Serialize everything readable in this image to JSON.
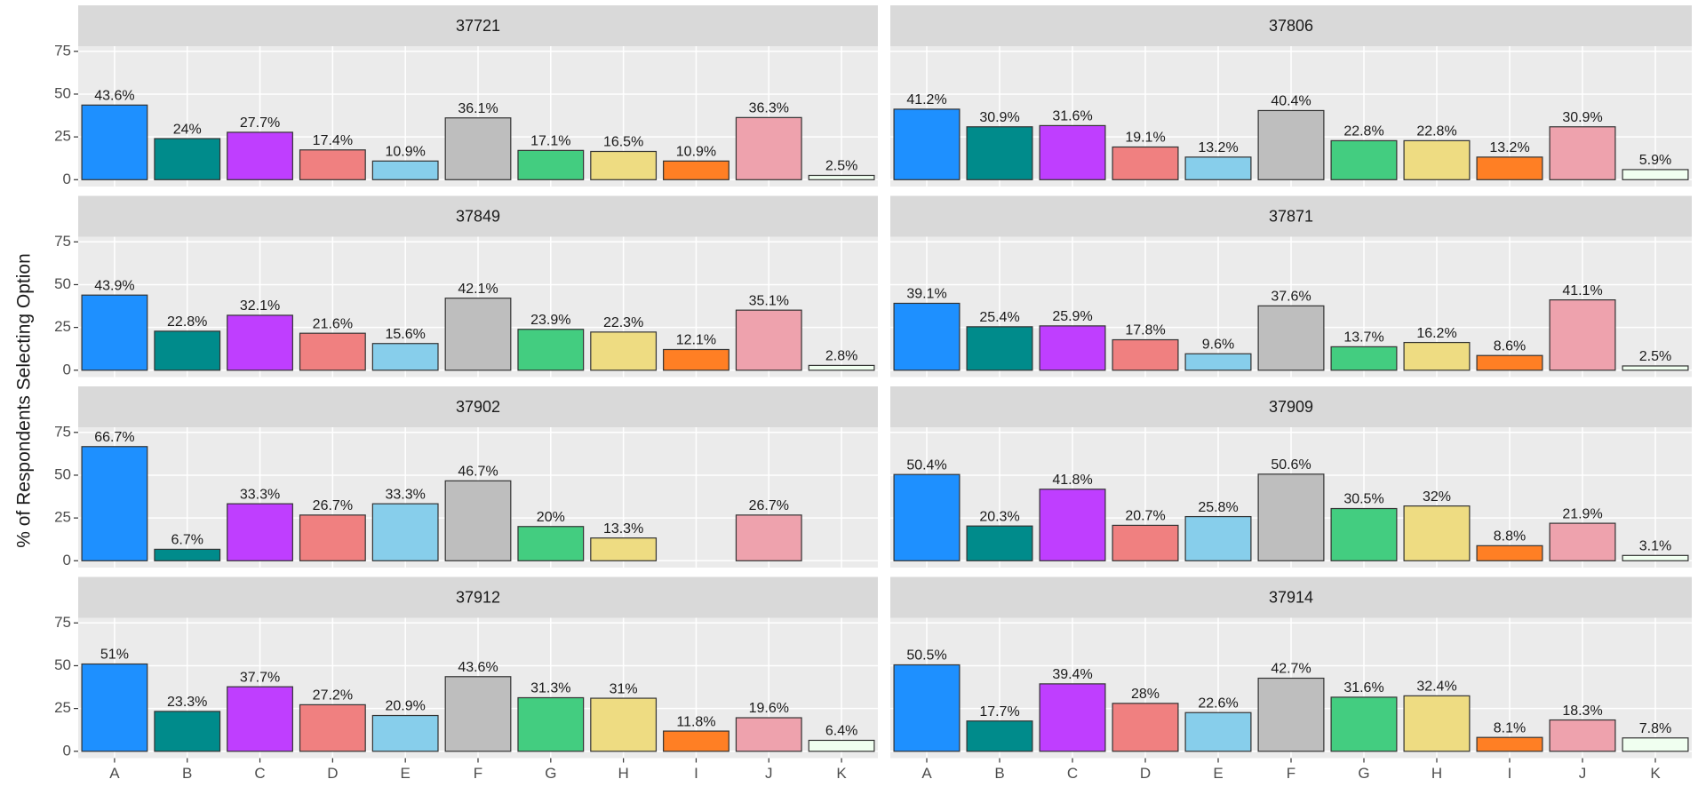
{
  "y_label": "% of Respondents Selecting Option",
  "chart_data": [
    {
      "type": "bar",
      "title": "37721",
      "categories": [
        "A",
        "B",
        "C",
        "D",
        "E",
        "F",
        "G",
        "H",
        "I",
        "J",
        "K"
      ],
      "values": [
        43.6,
        24,
        27.7,
        17.4,
        10.9,
        36.1,
        17.1,
        16.5,
        10.9,
        36.3,
        2.5
      ],
      "value_labels": [
        "43.6%",
        "24%",
        "27.7%",
        "17.4%",
        "10.9%",
        "36.1%",
        "17.1%",
        "16.5%",
        "10.9%",
        "36.3%",
        "2.5%"
      ],
      "colors": [
        "#1e90ff",
        "#008b8b",
        "#bf3eff",
        "#f08080",
        "#87ceeb",
        "#bebebe",
        "#43cd80",
        "#eedc82",
        "#ff7f24",
        "#eea2ad",
        "#f0fff0"
      ],
      "ylim": [
        -4,
        78
      ],
      "yticks": [
        0,
        25,
        50,
        75
      ],
      "grid": true
    },
    {
      "type": "bar",
      "title": "37806",
      "categories": [
        "A",
        "B",
        "C",
        "D",
        "E",
        "F",
        "G",
        "H",
        "I",
        "J",
        "K"
      ],
      "values": [
        41.2,
        30.9,
        31.6,
        19.1,
        13.2,
        40.4,
        22.8,
        22.8,
        13.2,
        30.9,
        5.9
      ],
      "value_labels": [
        "41.2%",
        "30.9%",
        "31.6%",
        "19.1%",
        "13.2%",
        "40.4%",
        "22.8%",
        "22.8%",
        "13.2%",
        "30.9%",
        "5.9%"
      ],
      "colors": [
        "#1e90ff",
        "#008b8b",
        "#bf3eff",
        "#f08080",
        "#87ceeb",
        "#bebebe",
        "#43cd80",
        "#eedc82",
        "#ff7f24",
        "#eea2ad",
        "#f0fff0"
      ],
      "ylim": [
        -4,
        78
      ],
      "yticks": [
        0,
        25,
        50,
        75
      ],
      "grid": true
    },
    {
      "type": "bar",
      "title": "37849",
      "categories": [
        "A",
        "B",
        "C",
        "D",
        "E",
        "F",
        "G",
        "H",
        "I",
        "J",
        "K"
      ],
      "values": [
        43.9,
        22.8,
        32.1,
        21.6,
        15.6,
        42.1,
        23.9,
        22.3,
        12.1,
        35.1,
        2.8
      ],
      "value_labels": [
        "43.9%",
        "22.8%",
        "32.1%",
        "21.6%",
        "15.6%",
        "42.1%",
        "23.9%",
        "22.3%",
        "12.1%",
        "35.1%",
        "2.8%"
      ],
      "colors": [
        "#1e90ff",
        "#008b8b",
        "#bf3eff",
        "#f08080",
        "#87ceeb",
        "#bebebe",
        "#43cd80",
        "#eedc82",
        "#ff7f24",
        "#eea2ad",
        "#f0fff0"
      ],
      "ylim": [
        -4,
        78
      ],
      "yticks": [
        0,
        25,
        50,
        75
      ],
      "grid": true
    },
    {
      "type": "bar",
      "title": "37871",
      "categories": [
        "A",
        "B",
        "C",
        "D",
        "E",
        "F",
        "G",
        "H",
        "I",
        "J",
        "K"
      ],
      "values": [
        39.1,
        25.4,
        25.9,
        17.8,
        9.6,
        37.6,
        13.7,
        16.2,
        8.6,
        41.1,
        2.5
      ],
      "value_labels": [
        "39.1%",
        "25.4%",
        "25.9%",
        "17.8%",
        "9.6%",
        "37.6%",
        "13.7%",
        "16.2%",
        "8.6%",
        "41.1%",
        "2.5%"
      ],
      "colors": [
        "#1e90ff",
        "#008b8b",
        "#bf3eff",
        "#f08080",
        "#87ceeb",
        "#bebebe",
        "#43cd80",
        "#eedc82",
        "#ff7f24",
        "#eea2ad",
        "#f0fff0"
      ],
      "ylim": [
        -4,
        78
      ],
      "yticks": [
        0,
        25,
        50,
        75
      ],
      "grid": true
    },
    {
      "type": "bar",
      "title": "37902",
      "categories": [
        "A",
        "B",
        "C",
        "D",
        "E",
        "F",
        "G",
        "H",
        "I",
        "J",
        "K"
      ],
      "values": [
        66.7,
        6.7,
        33.3,
        26.7,
        33.3,
        46.7,
        20,
        13.3,
        null,
        26.7,
        null
      ],
      "value_labels": [
        "66.7%",
        "6.7%",
        "33.3%",
        "26.7%",
        "33.3%",
        "46.7%",
        "20%",
        "13.3%",
        null,
        "26.7%",
        null
      ],
      "colors": [
        "#1e90ff",
        "#008b8b",
        "#bf3eff",
        "#f08080",
        "#87ceeb",
        "#bebebe",
        "#43cd80",
        "#eedc82",
        "#ff7f24",
        "#eea2ad",
        "#f0fff0"
      ],
      "ylim": [
        -4,
        78
      ],
      "yticks": [
        0,
        25,
        50,
        75
      ],
      "grid": true
    },
    {
      "type": "bar",
      "title": "37909",
      "categories": [
        "A",
        "B",
        "C",
        "D",
        "E",
        "F",
        "G",
        "H",
        "I",
        "J",
        "K"
      ],
      "values": [
        50.4,
        20.3,
        41.8,
        20.7,
        25.8,
        50.6,
        30.5,
        32,
        8.8,
        21.9,
        3.1
      ],
      "value_labels": [
        "50.4%",
        "20.3%",
        "41.8%",
        "20.7%",
        "25.8%",
        "50.6%",
        "30.5%",
        "32%",
        "8.8%",
        "21.9%",
        "3.1%"
      ],
      "colors": [
        "#1e90ff",
        "#008b8b",
        "#bf3eff",
        "#f08080",
        "#87ceeb",
        "#bebebe",
        "#43cd80",
        "#eedc82",
        "#ff7f24",
        "#eea2ad",
        "#f0fff0"
      ],
      "ylim": [
        -4,
        78
      ],
      "yticks": [
        0,
        25,
        50,
        75
      ],
      "grid": true
    },
    {
      "type": "bar",
      "title": "37912",
      "categories": [
        "A",
        "B",
        "C",
        "D",
        "E",
        "F",
        "G",
        "H",
        "I",
        "J",
        "K"
      ],
      "values": [
        51,
        23.3,
        37.7,
        27.2,
        20.9,
        43.6,
        31.3,
        31,
        11.8,
        19.6,
        6.4
      ],
      "value_labels": [
        "51%",
        "23.3%",
        "37.7%",
        "27.2%",
        "20.9%",
        "43.6%",
        "31.3%",
        "31%",
        "11.8%",
        "19.6%",
        "6.4%"
      ],
      "colors": [
        "#1e90ff",
        "#008b8b",
        "#bf3eff",
        "#f08080",
        "#87ceeb",
        "#bebebe",
        "#43cd80",
        "#eedc82",
        "#ff7f24",
        "#eea2ad",
        "#f0fff0"
      ],
      "ylim": [
        -4,
        78
      ],
      "yticks": [
        0,
        25,
        50,
        75
      ],
      "grid": true
    },
    {
      "type": "bar",
      "title": "37914",
      "categories": [
        "A",
        "B",
        "C",
        "D",
        "E",
        "F",
        "G",
        "H",
        "I",
        "J",
        "K"
      ],
      "values": [
        50.5,
        17.7,
        39.4,
        28,
        22.6,
        42.7,
        31.6,
        32.4,
        8.1,
        18.3,
        7.8
      ],
      "value_labels": [
        "50.5%",
        "17.7%",
        "39.4%",
        "28%",
        "22.6%",
        "42.7%",
        "31.6%",
        "32.4%",
        "8.1%",
        "18.3%",
        "7.8%"
      ],
      "colors": [
        "#1e90ff",
        "#008b8b",
        "#bf3eff",
        "#f08080",
        "#87ceeb",
        "#bebebe",
        "#43cd80",
        "#eedc82",
        "#ff7f24",
        "#eea2ad",
        "#f0fff0"
      ],
      "ylim": [
        -4,
        78
      ],
      "yticks": [
        0,
        25,
        50,
        75
      ],
      "grid": true
    }
  ]
}
